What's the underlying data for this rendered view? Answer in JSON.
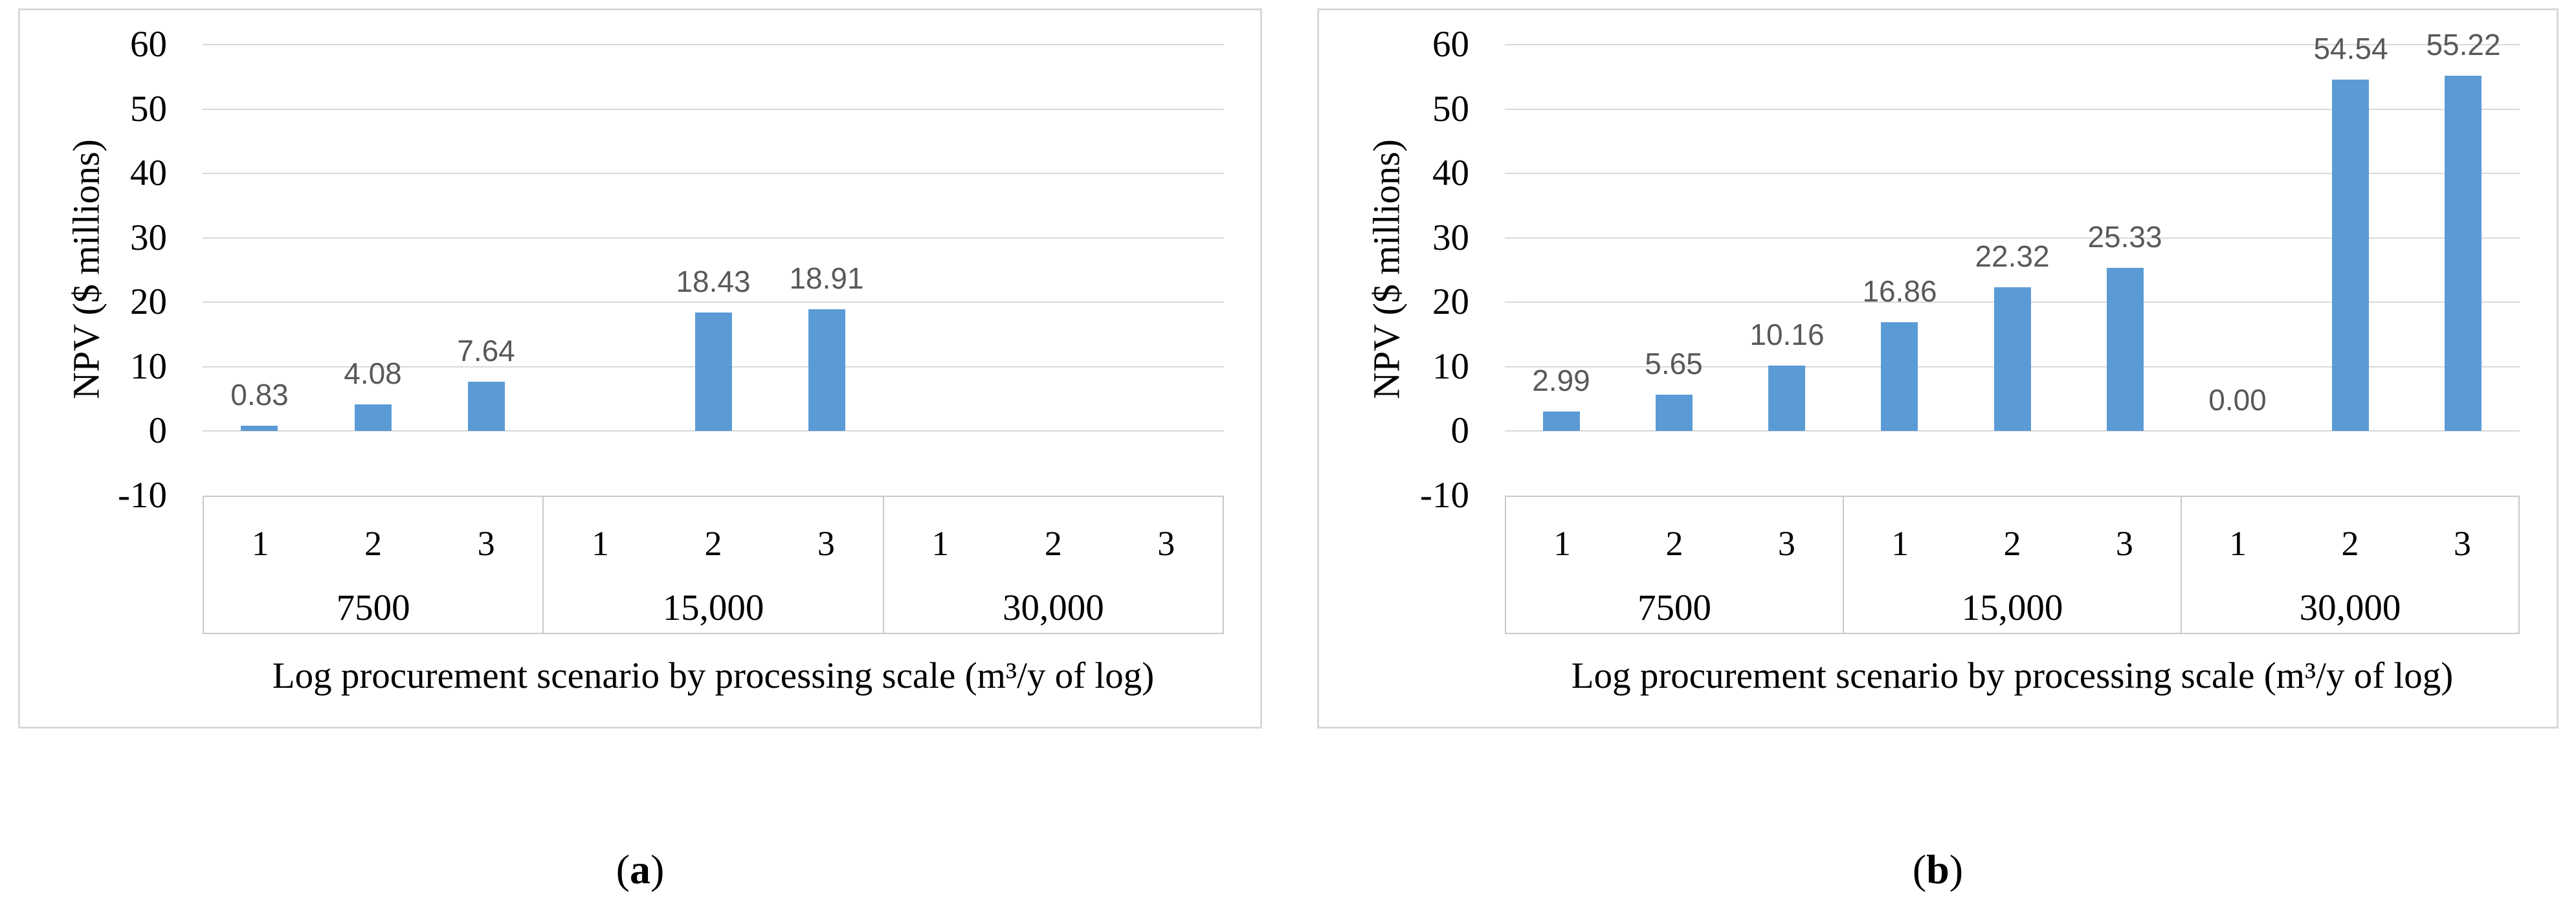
{
  "chart_data": [
    {
      "type": "bar",
      "panel": "a",
      "ylabel": "NPV ($ millions)",
      "xlabel": "Log procurement scenario by processing scale (m³/y of log)",
      "ylim": [
        -10,
        60
      ],
      "yticks": [
        60,
        50,
        40,
        30,
        20,
        10,
        0,
        -10
      ],
      "grid": true,
      "legend": "none",
      "bar_color": "#5B9BD5",
      "data_label_color": "#595959",
      "scenarios": [
        "1",
        "2",
        "3"
      ],
      "groups": [
        {
          "label": "7500",
          "values": [
            0.83,
            4.08,
            7.64
          ],
          "data_labels": [
            "0.83",
            "4.08",
            "7.64"
          ]
        },
        {
          "label": "15,000",
          "values": [
            null,
            18.43,
            18.91
          ],
          "data_labels": [
            null,
            "18.43",
            "18.91"
          ]
        },
        {
          "label": "30,000",
          "values": [
            null,
            null,
            null
          ],
          "data_labels": [
            null,
            null,
            null
          ]
        }
      ]
    },
    {
      "type": "bar",
      "panel": "b",
      "ylabel": "NPV ($ millions)",
      "xlabel": "Log procurement scenario by processing scale (m³/y of log)",
      "ylim": [
        -10,
        60
      ],
      "yticks": [
        60,
        50,
        40,
        30,
        20,
        10,
        0,
        -10
      ],
      "grid": true,
      "legend": "none",
      "bar_color": "#5B9BD5",
      "data_label_color": "#595959",
      "scenarios": [
        "1",
        "2",
        "3"
      ],
      "groups": [
        {
          "label": "7500",
          "values": [
            2.99,
            5.65,
            10.16
          ],
          "data_labels": [
            "2.99",
            "5.65",
            "10.16"
          ]
        },
        {
          "label": "15,000",
          "values": [
            16.86,
            22.32,
            25.33
          ],
          "data_labels": [
            "16.86",
            "22.32",
            "25.33"
          ]
        },
        {
          "label": "30,000",
          "values": [
            0.0,
            54.54,
            55.22
          ],
          "data_labels": [
            "0.00",
            "54.54",
            "55.22"
          ]
        }
      ]
    }
  ],
  "captions": [
    {
      "open": "(",
      "letter": "a",
      "close": ")"
    },
    {
      "open": "(",
      "letter": "b",
      "close": ")"
    }
  ]
}
